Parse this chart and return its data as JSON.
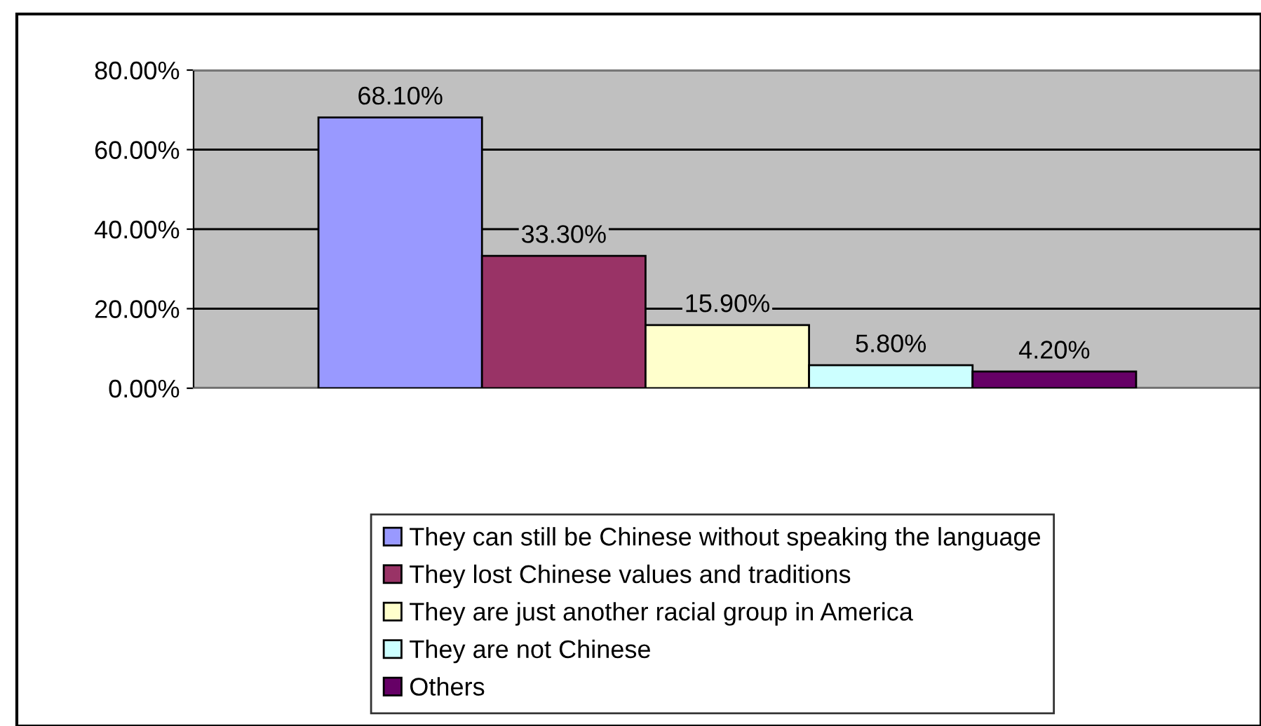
{
  "chart_data": {
    "type": "bar",
    "categories": [
      null
    ],
    "series": [
      {
        "name": "They can still be Chinese without speaking the language",
        "color": "#9999ff",
        "values": [
          68.1
        ],
        "value_labels": [
          "68.10%"
        ]
      },
      {
        "name": "They lost Chinese values and traditions",
        "color": "#993366",
        "values": [
          33.3
        ],
        "value_labels": [
          "33.30%"
        ]
      },
      {
        "name": "They are just another racial group in America",
        "color": "#ffffcc",
        "values": [
          15.9
        ],
        "value_labels": [
          "15.90%"
        ]
      },
      {
        "name": "They are not Chinese",
        "color": "#ccffff",
        "values": [
          5.8
        ],
        "value_labels": [
          "5.80%"
        ]
      },
      {
        "name": "Others",
        "color": "#660066",
        "values": [
          4.2
        ],
        "value_labels": [
          "4.20%"
        ]
      }
    ],
    "ylim": [
      0,
      80
    ],
    "yticks": [
      {
        "value": 0,
        "label": "0.00%"
      },
      {
        "value": 20,
        "label": "20.00%"
      },
      {
        "value": 40,
        "label": "40.00%"
      },
      {
        "value": 60,
        "label": "60.00%"
      },
      {
        "value": 80,
        "label": "80.00%"
      }
    ],
    "grid": "y",
    "legend": "bottom"
  }
}
